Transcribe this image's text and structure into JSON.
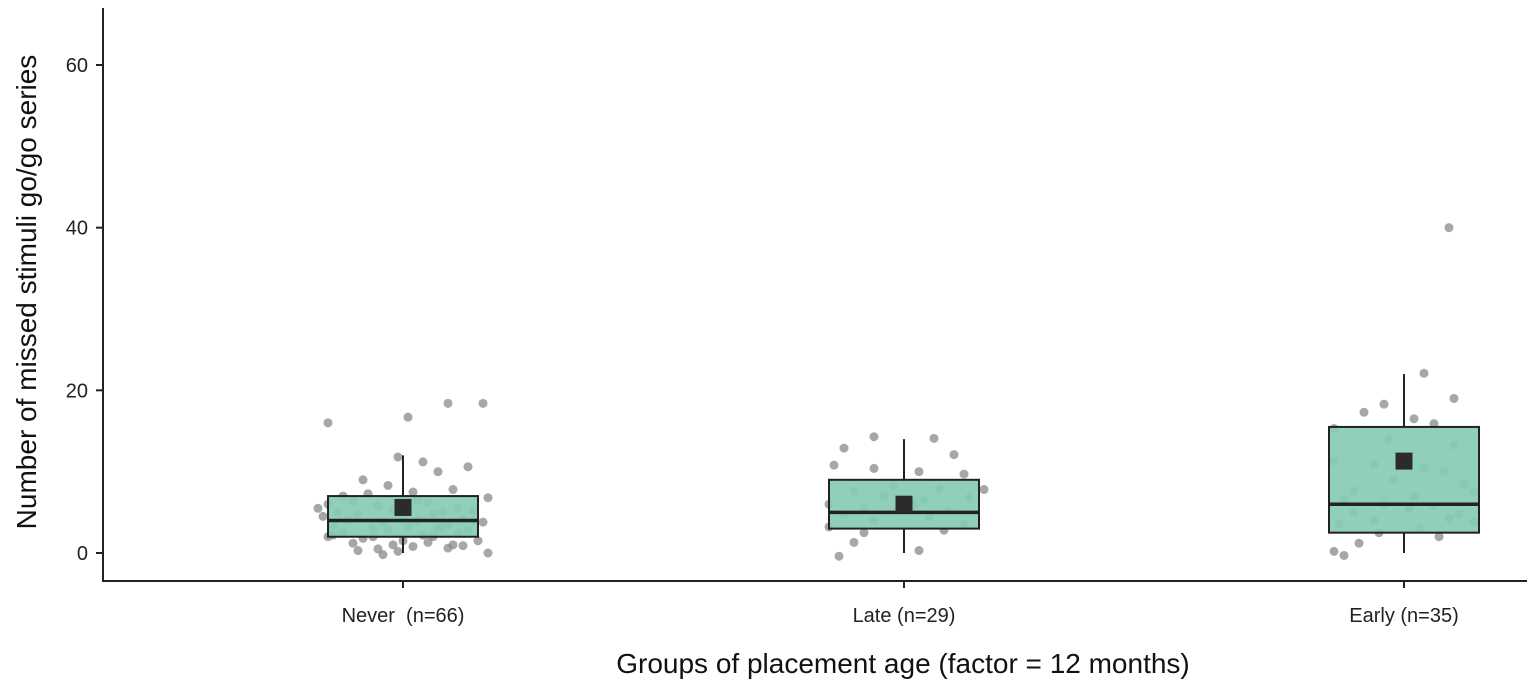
{
  "chart_data": {
    "type": "box",
    "xlabel": "Groups of placement age (factor = 12 months)",
    "ylabel": "Number of missed stimuli go/go series",
    "categories": [
      "Never  (n=66)",
      "Late (n=29)",
      "Early (n=35)"
    ],
    "ylim": [
      -3.5,
      67
    ],
    "yticks": [
      0,
      20,
      40,
      60
    ],
    "grid": false,
    "colors": {
      "box_fill": "#87ccb5",
      "box_stroke": "#222222",
      "mean_marker": "#2b2b2b",
      "points": "#8a8a8a"
    },
    "boxes": [
      {
        "q1": 2,
        "median": 4,
        "q3": 7,
        "whisker_low": 0,
        "whisker_high": 12,
        "mean": 5.6
      },
      {
        "q1": 3,
        "median": 5,
        "q3": 9,
        "whisker_low": 0,
        "whisker_high": 14,
        "mean": 6
      },
      {
        "q1": 2.5,
        "median": 6,
        "q3": 15.5,
        "whisker_low": 0,
        "whisker_high": 22,
        "mean": 11.3
      }
    ],
    "points": [
      [
        [
          -0.15,
          16
        ],
        [
          0.01,
          16.7
        ],
        [
          0.09,
          18.4
        ],
        [
          0.16,
          18.4
        ],
        [
          -0.01,
          11.8
        ],
        [
          0.04,
          11.2
        ],
        [
          0.13,
          10.6
        ],
        [
          0.07,
          10
        ],
        [
          -0.08,
          9
        ],
        [
          -0.03,
          8.3
        ],
        [
          0.1,
          7.8
        ],
        [
          -0.12,
          7
        ],
        [
          -0.07,
          7.3
        ],
        [
          0.02,
          7.5
        ],
        [
          0.17,
          6.8
        ],
        [
          -0.15,
          6
        ],
        [
          -0.1,
          6.3
        ],
        [
          -0.05,
          5.8
        ],
        [
          0.05,
          6.2
        ],
        [
          0.11,
          5.5
        ],
        [
          -0.13,
          5
        ],
        [
          -0.02,
          5.3
        ],
        [
          0.08,
          5
        ],
        [
          0.14,
          5.2
        ],
        [
          -0.16,
          4.5
        ],
        [
          -0.09,
          4.8
        ],
        [
          0,
          4.5
        ],
        [
          0.06,
          4.8
        ],
        [
          0.12,
          4.2
        ],
        [
          -0.11,
          4
        ],
        [
          -0.04,
          3.8
        ],
        [
          0.03,
          4
        ],
        [
          0.09,
          3.5
        ],
        [
          0.16,
          3.8
        ],
        [
          -0.14,
          3.3
        ],
        [
          -0.06,
          3
        ],
        [
          0.01,
          3.2
        ],
        [
          0.07,
          3
        ],
        [
          0.13,
          2.8
        ],
        [
          -0.12,
          2.5
        ],
        [
          -0.03,
          2.8
        ],
        [
          0.04,
          2.2
        ],
        [
          0.11,
          2.5
        ],
        [
          -0.15,
          2
        ],
        [
          -0.08,
          1.8
        ],
        [
          0,
          1.5
        ],
        [
          0.06,
          2
        ],
        [
          0.15,
          1.5
        ],
        [
          -0.1,
          1.2
        ],
        [
          -0.02,
          1
        ],
        [
          0.05,
          1.3
        ],
        [
          0.12,
          0.9
        ],
        [
          -0.05,
          0.5
        ],
        [
          0.02,
          0.8
        ],
        [
          0.09,
          0.6
        ],
        [
          -0.09,
          0.3
        ],
        [
          -0.01,
          0.2
        ],
        [
          0.17,
          0
        ],
        [
          -0.04,
          -0.2
        ],
        [
          0.08,
          3.3
        ],
        [
          -0.17,
          5.5
        ],
        [
          0.14,
          4
        ],
        [
          0.03,
          6.5
        ],
        [
          -0.06,
          2
        ],
        [
          0.1,
          1
        ],
        [
          -0.14,
          2.2
        ]
      ],
      [
        [
          -0.06,
          14.3
        ],
        [
          0.06,
          14.1
        ],
        [
          -0.12,
          12.9
        ],
        [
          0.1,
          12.1
        ],
        [
          -0.06,
          10.4
        ],
        [
          -0.14,
          10.8
        ],
        [
          0.03,
          10
        ],
        [
          0.12,
          9.7
        ],
        [
          -0.02,
          8.3
        ],
        [
          0.07,
          7.9
        ],
        [
          -0.1,
          7.6
        ],
        [
          0.16,
          7.8
        ],
        [
          -0.04,
          7
        ],
        [
          0.04,
          6.5
        ],
        [
          0.13,
          6.8
        ],
        [
          -0.15,
          6
        ],
        [
          -0.08,
          5.5
        ],
        [
          0.02,
          6
        ],
        [
          0.09,
          5.2
        ],
        [
          -0.12,
          4.8
        ],
        [
          0.05,
          4.5
        ],
        [
          -0.06,
          4
        ],
        [
          0.12,
          3.5
        ],
        [
          -0.15,
          3.2
        ],
        [
          0.08,
          2.8
        ],
        [
          -0.08,
          2.5
        ],
        [
          -0.1,
          1.3
        ],
        [
          0.03,
          0.3
        ],
        [
          -0.13,
          -0.4
        ]
      ],
      [
        [
          0.09,
          40
        ],
        [
          0.04,
          22.1
        ],
        [
          0.1,
          19
        ],
        [
          -0.04,
          18.3
        ],
        [
          -0.08,
          17.3
        ],
        [
          0.02,
          16.5
        ],
        [
          0.06,
          15.9
        ],
        [
          -0.14,
          15.3
        ],
        [
          -0.03,
          14
        ],
        [
          0.1,
          13.3
        ],
        [
          -0.14,
          11.3
        ],
        [
          -0.06,
          10.9
        ],
        [
          0.04,
          10.5
        ],
        [
          0.08,
          10
        ],
        [
          -0.02,
          9
        ],
        [
          0.12,
          8.4
        ],
        [
          -0.1,
          7.6
        ],
        [
          0.02,
          7
        ],
        [
          0.14,
          7.5
        ],
        [
          -0.12,
          6.5
        ],
        [
          -0.04,
          6
        ],
        [
          0.06,
          5.8
        ],
        [
          -0.1,
          5
        ],
        [
          0.01,
          5.5
        ],
        [
          0.11,
          4.8
        ],
        [
          -0.06,
          4
        ],
        [
          0.09,
          4.3
        ],
        [
          -0.13,
          3.6
        ],
        [
          0.03,
          3
        ],
        [
          0.14,
          3.8
        ],
        [
          -0.05,
          2.5
        ],
        [
          0.07,
          2
        ],
        [
          -0.09,
          1.2
        ],
        [
          -0.14,
          0.2
        ],
        [
          -0.12,
          -0.3
        ]
      ]
    ]
  }
}
